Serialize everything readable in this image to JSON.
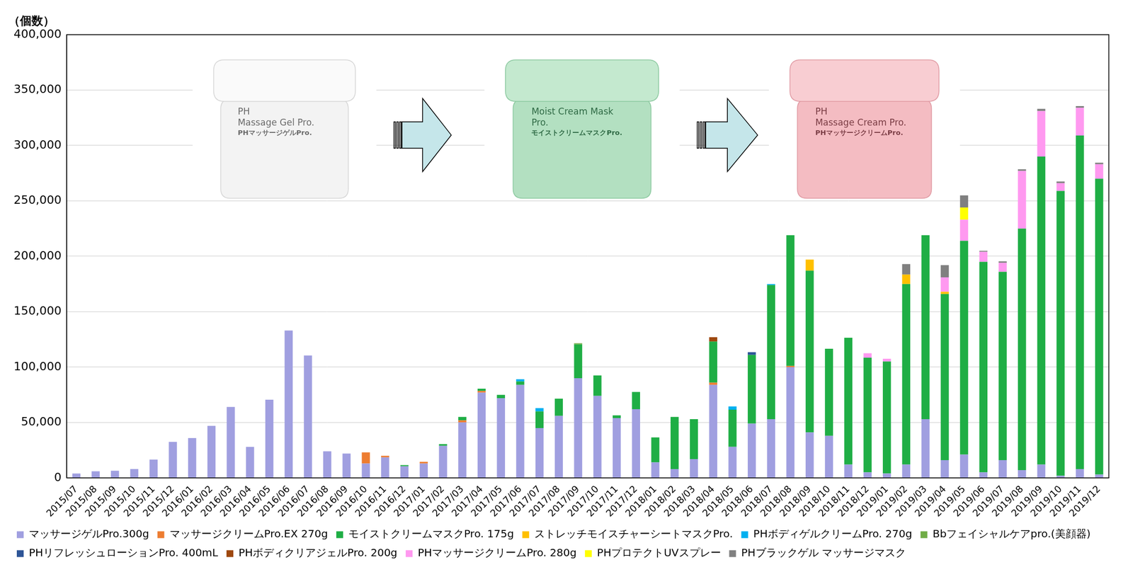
{
  "chart_data": {
    "type": "bar",
    "y_label": "（個数）",
    "stacked": true,
    "grid": true,
    "legend": "bottom",
    "annotations": [
      {
        "lines": [
          "PH",
          "Massage Gel Pro.",
          "PHマッサージゲルPro."
        ]
      },
      {
        "lines": [
          "Moist Cream Mask",
          "Pro.",
          "モイストクリームマスクPro."
        ]
      },
      {
        "lines": [
          "PH",
          "Massage Cream Pro.",
          "PHマッサージクリームPro."
        ]
      }
    ],
    "categories": [
      "2015/07",
      "2015/08",
      "2015/09",
      "2015/10",
      "2015/11",
      "2015/12",
      "2016/01",
      "2016/02",
      "2016/03",
      "2016/04",
      "2016/05",
      "2016/06",
      "2016/07",
      "2016/08",
      "2016/09",
      "2016/10",
      "2016/11",
      "2016/12",
      "2017/01",
      "2017/02",
      "2017/03",
      "2017/04",
      "2017/05",
      "2017/06",
      "2017/07",
      "2017/08",
      "2017/09",
      "2017/10",
      "2017/11",
      "2017/12",
      "2018/01",
      "2018/02",
      "2018/03",
      "2018/04",
      "2018/05",
      "2018/06",
      "2018/07",
      "2018/08",
      "2018/09",
      "2018/10",
      "2018/11",
      "2018/12",
      "2019/01",
      "2019/02",
      "2019/03",
      "2019/04",
      "2019/05",
      "2019/06",
      "2019/07",
      "2019/08",
      "2019/09",
      "2019/10",
      "2019/11",
      "2019/12"
    ],
    "ylim": [
      0,
      400000
    ],
    "yticks": [
      0,
      {
        "value": 50000,
        "label": "50,000"
      },
      {
        "value": 100000,
        "label": "100,000"
      },
      {
        "value": 150000,
        "label": "150,000"
      },
      {
        "value": 200000,
        "label": "200,000"
      },
      {
        "value": 250000,
        "label": "250,000"
      },
      {
        "value": 300000,
        "label": "300,000"
      },
      {
        "value": 350000,
        "label": "350,000"
      },
      {
        "value": 400000,
        "label": "400,000"
      }
    ],
    "series": [
      {
        "name": "マッサージゲルPro.300g",
        "color": "#a09fe0",
        "values": [
          4000,
          6000,
          6500,
          8000,
          16500,
          32500,
          36000,
          47000,
          64000,
          28000,
          70500,
          133000,
          110500,
          24000,
          22000,
          13000,
          18500,
          10500,
          13000,
          29000,
          50000,
          77000,
          72000,
          84000,
          45000,
          56000,
          90000,
          74000,
          54000,
          62000,
          14000,
          8000,
          17000,
          84000,
          28000,
          49000,
          53000,
          100000,
          41000,
          38000,
          12000,
          5000,
          4000,
          12000,
          53000,
          16000,
          21000,
          5000,
          16000,
          7000,
          12000,
          2000,
          8000,
          3000
        ]
      },
      {
        "name": "マッサージクリームPro.EX 270g",
        "color": "#ed7d31",
        "values": [
          0,
          0,
          0,
          0,
          0,
          0,
          0,
          0,
          0,
          0,
          0,
          0,
          0,
          0,
          0,
          10000,
          1500,
          0,
          1500,
          0,
          2000,
          1500,
          0,
          0,
          0,
          0,
          0,
          0,
          0,
          0,
          0,
          0,
          0,
          2000,
          0,
          0,
          0,
          1000,
          0,
          0,
          0,
          0,
          0,
          0,
          0,
          0,
          0,
          0,
          0,
          0,
          0,
          0,
          0,
          0
        ]
      },
      {
        "name": "モイストクリームマスクPro. 175g",
        "color": "#1fae45",
        "values": [
          0,
          0,
          0,
          0,
          0,
          0,
          0,
          0,
          0,
          0,
          0,
          0,
          0,
          0,
          0,
          0,
          0,
          1000,
          0,
          1500,
          3000,
          2000,
          3000,
          3000,
          15000,
          15500,
          30500,
          18500,
          2500,
          15500,
          22500,
          47000,
          36000,
          37000,
          33500,
          62000,
          121000,
          118000,
          146000,
          78500,
          114500,
          103500,
          101000,
          163000,
          166000,
          150000,
          193000,
          190000,
          170000,
          218000,
          278000,
          257000,
          301000,
          267000
        ]
      },
      {
        "name": "ストレッチモイスチャーシートマスクPro.",
        "color": "#ffc000",
        "values": [
          0,
          0,
          0,
          0,
          0,
          0,
          0,
          0,
          0,
          0,
          0,
          0,
          0,
          0,
          0,
          0,
          0,
          0,
          0,
          0,
          0,
          0,
          0,
          0,
          0,
          0,
          0,
          0,
          0,
          0,
          0,
          0,
          0,
          0,
          0,
          0,
          0,
          0,
          10000,
          0,
          0,
          0,
          0,
          8500,
          0,
          2000,
          0,
          0,
          0,
          0,
          0,
          0,
          0,
          0
        ]
      },
      {
        "name": "PHボディゲルクリームPro. 270g",
        "color": "#00b0f0",
        "values": [
          0,
          0,
          0,
          0,
          0,
          0,
          0,
          0,
          0,
          0,
          0,
          0,
          0,
          0,
          0,
          0,
          0,
          0,
          0,
          0,
          0,
          0,
          0,
          2000,
          3000,
          0,
          0,
          0,
          0,
          0,
          0,
          0,
          0,
          0,
          3000,
          0,
          1000,
          0,
          0,
          0,
          0,
          0,
          0,
          0,
          0,
          0,
          0,
          0,
          0,
          0,
          0,
          0,
          0,
          0
        ]
      },
      {
        "name": "Bbフェイシャルケアpro.(美顔器)",
        "color": "#70ad47",
        "values": [
          0,
          0,
          0,
          0,
          0,
          0,
          0,
          0,
          0,
          0,
          0,
          0,
          0,
          0,
          0,
          0,
          0,
          0,
          0,
          0,
          0,
          0,
          0,
          0,
          0,
          0,
          1000,
          0,
          0,
          0,
          0,
          0,
          0,
          0,
          0,
          0,
          0,
          0,
          0,
          0,
          0,
          0,
          0,
          0,
          0,
          0,
          0,
          0,
          0,
          0,
          0,
          0,
          0,
          0
        ]
      },
      {
        "name": "PHリフレッシュローションPro. 400mL",
        "color": "#2e5597",
        "values": [
          0,
          0,
          0,
          0,
          0,
          0,
          0,
          0,
          0,
          0,
          0,
          0,
          0,
          0,
          0,
          0,
          0,
          0,
          0,
          0,
          0,
          0,
          0,
          0,
          0,
          0,
          0,
          0,
          0,
          0,
          0,
          0,
          0,
          0,
          0,
          2500,
          0,
          0,
          0,
          0,
          0,
          0,
          0,
          0,
          0,
          0,
          0,
          0,
          0,
          0,
          0,
          0,
          0,
          0
        ]
      },
      {
        "name": "PHボディクリアジェルPro. 200g",
        "color": "#9e480e",
        "values": [
          0,
          0,
          0,
          0,
          0,
          0,
          0,
          0,
          0,
          0,
          0,
          0,
          0,
          0,
          0,
          0,
          0,
          0,
          0,
          0,
          0,
          0,
          0,
          0,
          0,
          0,
          0,
          0,
          0,
          0,
          0,
          0,
          0,
          4000,
          0,
          0,
          0,
          0,
          0,
          0,
          0,
          0,
          0,
          0,
          0,
          0,
          0,
          0,
          0,
          0,
          0,
          0,
          0,
          0
        ]
      },
      {
        "name": "PHマッサージクリームPro. 280g",
        "color": "#ff99f0",
        "values": [
          0,
          0,
          0,
          0,
          0,
          0,
          0,
          0,
          0,
          0,
          0,
          0,
          0,
          0,
          0,
          0,
          0,
          0,
          0,
          0,
          0,
          0,
          0,
          0,
          0,
          0,
          0,
          0,
          0,
          0,
          0,
          0,
          0,
          0,
          0,
          0,
          0,
          0,
          0,
          0,
          0,
          4000,
          2500,
          0,
          0,
          13000,
          19000,
          9000,
          8000,
          52000,
          41000,
          7000,
          25000,
          13000
        ]
      },
      {
        "name": "PHプロテクトUVスプレー",
        "color": "#ffff00",
        "values": [
          0,
          0,
          0,
          0,
          0,
          0,
          0,
          0,
          0,
          0,
          0,
          0,
          0,
          0,
          0,
          0,
          0,
          0,
          0,
          0,
          0,
          0,
          0,
          0,
          0,
          0,
          0,
          0,
          0,
          0,
          0,
          0,
          0,
          0,
          0,
          0,
          0,
          0,
          0,
          0,
          0,
          0,
          0,
          0,
          0,
          0,
          11000,
          0,
          0,
          0,
          0,
          0,
          0,
          0
        ]
      },
      {
        "name": "PHブラックゲル マッサージマスク",
        "color": "#808080",
        "values": [
          0,
          0,
          0,
          0,
          0,
          0,
          0,
          0,
          0,
          0,
          0,
          0,
          0,
          0,
          0,
          0,
          0,
          0,
          0,
          0,
          0,
          0,
          0,
          0,
          0,
          0,
          0,
          0,
          0,
          0,
          0,
          0,
          0,
          0,
          0,
          0,
          0,
          0,
          0,
          0,
          0,
          0,
          0,
          9500,
          0,
          11000,
          11000,
          1000,
          1500,
          1500,
          2000,
          1500,
          1500,
          1500
        ]
      }
    ]
  }
}
